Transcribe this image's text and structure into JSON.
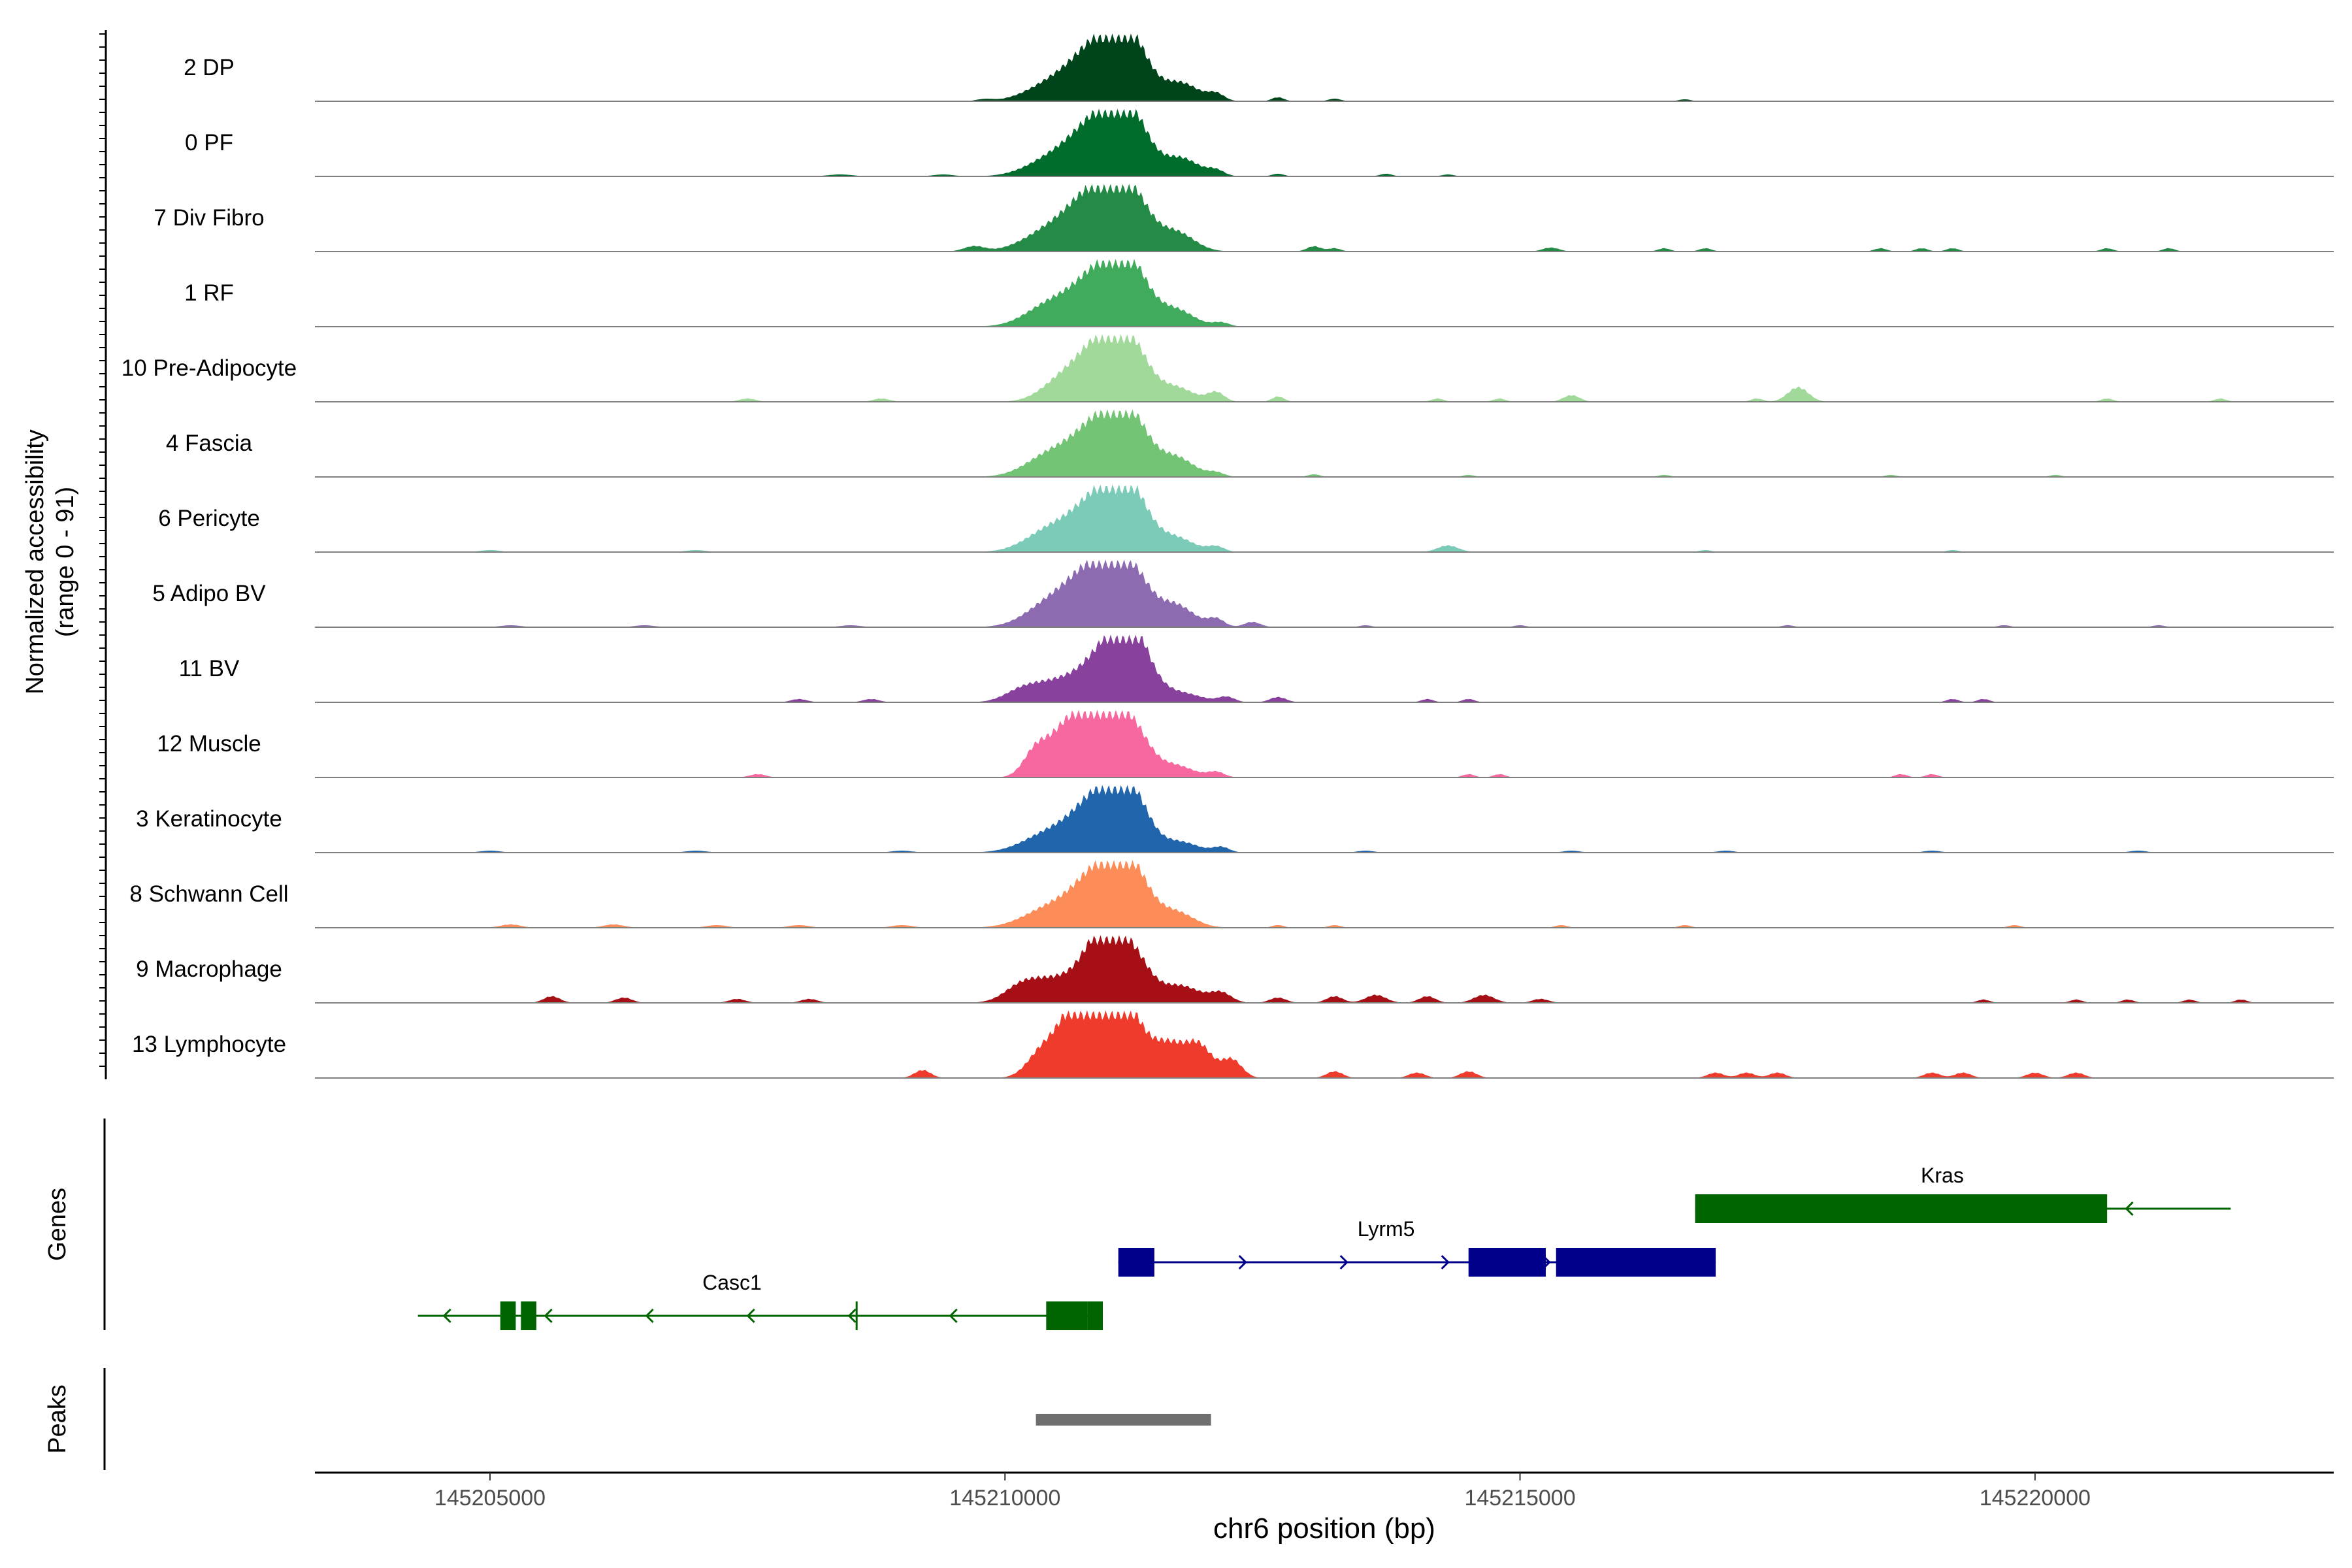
{
  "chart_data": {
    "type": "area",
    "title": "",
    "y_axis_label": "Normalized accessibility",
    "y_axis_sublabel": "(range 0 - 91)",
    "y_range": [
      0,
      91
    ],
    "x_label": "chr6 position (bp)",
    "x_range": [
      145203300,
      145222900
    ],
    "x_ticks": [
      145205000,
      145210000,
      145215000,
      145220000
    ],
    "tracks": [
      {
        "label": "2 DP",
        "color": "#00441b",
        "peaks": [
          [
            145210950,
            88,
            240
          ],
          [
            145211250,
            62,
            160
          ],
          [
            145210500,
            30,
            260
          ],
          [
            145211700,
            28,
            180
          ],
          [
            145212050,
            10,
            80
          ],
          [
            145212650,
            6,
            60
          ],
          [
            145213200,
            4,
            60
          ],
          [
            145209800,
            3,
            80
          ],
          [
            145216600,
            3,
            60
          ]
        ]
      },
      {
        "label": "0 PF",
        "color": "#006d2c",
        "peaks": [
          [
            145210950,
            88,
            240
          ],
          [
            145211250,
            62,
            160
          ],
          [
            145210500,
            30,
            260
          ],
          [
            145211700,
            28,
            180
          ],
          [
            145212050,
            8,
            80
          ],
          [
            145208400,
            3,
            120
          ],
          [
            145209400,
            3,
            100
          ],
          [
            145212650,
            4,
            60
          ],
          [
            145213700,
            4,
            60
          ],
          [
            145214300,
            3,
            60
          ]
        ]
      },
      {
        "label": "7 Div Fibro",
        "color": "#238b45",
        "peaks": [
          [
            145210900,
            90,
            240
          ],
          [
            145211250,
            66,
            160
          ],
          [
            145210450,
            32,
            260
          ],
          [
            145211650,
            30,
            180
          ],
          [
            145209700,
            8,
            100
          ],
          [
            145213000,
            8,
            70
          ],
          [
            145213200,
            5,
            60
          ],
          [
            145215300,
            6,
            80
          ],
          [
            145216400,
            5,
            60
          ],
          [
            145216800,
            5,
            60
          ],
          [
            145218500,
            5,
            60
          ],
          [
            145218900,
            5,
            60
          ],
          [
            145219200,
            5,
            60
          ],
          [
            145220700,
            5,
            60
          ],
          [
            145221300,
            5,
            60
          ]
        ]
      },
      {
        "label": "1 RF",
        "color": "#41ab5d",
        "peaks": [
          [
            145210950,
            88,
            240
          ],
          [
            145211250,
            60,
            160
          ],
          [
            145210450,
            34,
            240
          ],
          [
            145211650,
            26,
            180
          ],
          [
            145212100,
            6,
            80
          ]
        ]
      },
      {
        "label": "10 Pre-Adipocyte",
        "color": "#a1d99b",
        "peaks": [
          [
            145210950,
            92,
            220
          ],
          [
            145211250,
            60,
            160
          ],
          [
            145210550,
            30,
            200
          ],
          [
            145211650,
            22,
            180
          ],
          [
            145212050,
            14,
            80
          ],
          [
            145212650,
            8,
            60
          ],
          [
            145207500,
            5,
            80
          ],
          [
            145208800,
            5,
            80
          ],
          [
            145214200,
            5,
            60
          ],
          [
            145214800,
            5,
            60
          ],
          [
            145215500,
            10,
            80
          ],
          [
            145217300,
            5,
            60
          ],
          [
            145217700,
            22,
            100
          ],
          [
            145220700,
            5,
            60
          ],
          [
            145221800,
            5,
            60
          ]
        ]
      },
      {
        "label": "4 Fascia",
        "color": "#74c476",
        "peaks": [
          [
            145210950,
            88,
            240
          ],
          [
            145211250,
            58,
            160
          ],
          [
            145210450,
            34,
            240
          ],
          [
            145211650,
            30,
            180
          ],
          [
            145212050,
            6,
            80
          ],
          [
            145213000,
            4,
            60
          ],
          [
            145214500,
            3,
            60
          ],
          [
            145216400,
            3,
            60
          ],
          [
            145218600,
            3,
            60
          ],
          [
            145220200,
            3,
            60
          ]
        ]
      },
      {
        "label": "6 Pericyte",
        "color": "#7ccbb8",
        "peaks": [
          [
            145210950,
            90,
            240
          ],
          [
            145211250,
            60,
            160
          ],
          [
            145210450,
            34,
            240
          ],
          [
            145211650,
            22,
            180
          ],
          [
            145212050,
            8,
            80
          ],
          [
            145214300,
            10,
            100
          ],
          [
            145205000,
            3,
            100
          ],
          [
            145207000,
            3,
            100
          ],
          [
            145216800,
            3,
            60
          ],
          [
            145219200,
            3,
            60
          ]
        ]
      },
      {
        "label": "5 Adipo BV",
        "color": "#8c6bb1",
        "peaks": [
          [
            145210900,
            92,
            240
          ],
          [
            145211250,
            62,
            160
          ],
          [
            145210450,
            36,
            240
          ],
          [
            145211650,
            34,
            180
          ],
          [
            145212050,
            12,
            80
          ],
          [
            145212400,
            8,
            80
          ],
          [
            145205200,
            3,
            100
          ],
          [
            145206500,
            3,
            100
          ],
          [
            145208500,
            3,
            100
          ],
          [
            145213500,
            3,
            60
          ],
          [
            145215000,
            3,
            60
          ],
          [
            145217600,
            3,
            60
          ],
          [
            145219700,
            3,
            60
          ],
          [
            145221200,
            3,
            60
          ]
        ]
      },
      {
        "label": "11 BV",
        "color": "#88419d",
        "peaks": [
          [
            145211050,
            88,
            240
          ],
          [
            145211250,
            60,
            160
          ],
          [
            145210500,
            30,
            260
          ],
          [
            145210150,
            12,
            160
          ],
          [
            145211700,
            14,
            200
          ],
          [
            145212150,
            8,
            80
          ],
          [
            145212650,
            8,
            80
          ],
          [
            145208000,
            5,
            80
          ],
          [
            145208700,
            5,
            80
          ],
          [
            145214100,
            5,
            60
          ],
          [
            145214500,
            5,
            60
          ],
          [
            145219200,
            5,
            60
          ],
          [
            145219500,
            5,
            60
          ]
        ]
      },
      {
        "label": "12 Muscle",
        "color": "#f768a1",
        "peaks": [
          [
            145210600,
            70,
            160
          ],
          [
            145210950,
            88,
            200
          ],
          [
            145211250,
            60,
            160
          ],
          [
            145210300,
            40,
            120
          ],
          [
            145211650,
            18,
            180
          ],
          [
            145212050,
            8,
            80
          ],
          [
            145207600,
            5,
            80
          ],
          [
            145214500,
            5,
            60
          ],
          [
            145214800,
            5,
            60
          ],
          [
            145218700,
            5,
            60
          ],
          [
            145219000,
            5,
            60
          ]
        ]
      },
      {
        "label": "3 Keratinocyte",
        "color": "#2166ac",
        "peaks": [
          [
            145210950,
            90,
            240
          ],
          [
            145211250,
            60,
            160
          ],
          [
            145210450,
            30,
            260
          ],
          [
            145211700,
            16,
            180
          ],
          [
            145212100,
            8,
            80
          ],
          [
            145205000,
            3,
            100
          ],
          [
            145207000,
            3,
            100
          ],
          [
            145209000,
            3,
            100
          ],
          [
            145213500,
            3,
            80
          ],
          [
            145215500,
            3,
            80
          ],
          [
            145217000,
            3,
            80
          ],
          [
            145219000,
            3,
            80
          ],
          [
            145221000,
            3,
            80
          ]
        ]
      },
      {
        "label": "8 Schwann Cell",
        "color": "#fc8d59",
        "peaks": [
          [
            145210950,
            90,
            240
          ],
          [
            145211250,
            60,
            160
          ],
          [
            145210450,
            30,
            260
          ],
          [
            145211650,
            24,
            180
          ],
          [
            145205200,
            5,
            100
          ],
          [
            145206200,
            5,
            100
          ],
          [
            145207200,
            4,
            100
          ],
          [
            145208000,
            4,
            100
          ],
          [
            145209000,
            4,
            100
          ],
          [
            145212650,
            4,
            60
          ],
          [
            145213200,
            4,
            60
          ],
          [
            145215400,
            4,
            60
          ],
          [
            145216600,
            4,
            60
          ],
          [
            145219800,
            4,
            60
          ]
        ]
      },
      {
        "label": "9 Macrophage",
        "color": "#a50f15",
        "peaks": [
          [
            145210950,
            98,
            180
          ],
          [
            145211250,
            62,
            160
          ],
          [
            145210500,
            36,
            260
          ],
          [
            145210150,
            18,
            160
          ],
          [
            145211700,
            26,
            200
          ],
          [
            145212100,
            14,
            100
          ],
          [
            145205600,
            10,
            80
          ],
          [
            145206300,
            8,
            80
          ],
          [
            145207400,
            6,
            80
          ],
          [
            145208100,
            6,
            80
          ],
          [
            145212650,
            8,
            80
          ],
          [
            145213200,
            10,
            80
          ],
          [
            145213600,
            12,
            100
          ],
          [
            145214100,
            10,
            80
          ],
          [
            145214650,
            12,
            100
          ],
          [
            145215200,
            6,
            80
          ],
          [
            145219500,
            5,
            60
          ],
          [
            145220400,
            5,
            60
          ],
          [
            145220900,
            5,
            60
          ],
          [
            145221500,
            5,
            60
          ],
          [
            145222000,
            5,
            60
          ]
        ]
      },
      {
        "label": "13 Lymphocyte",
        "color": "#ef3b2c",
        "peaks": [
          [
            145210650,
            80,
            160
          ],
          [
            145210950,
            92,
            200
          ],
          [
            145211200,
            70,
            160
          ],
          [
            145210350,
            36,
            140
          ],
          [
            145211600,
            52,
            180
          ],
          [
            145211900,
            40,
            120
          ],
          [
            145212200,
            28,
            100
          ],
          [
            145209200,
            12,
            80
          ],
          [
            145213200,
            10,
            80
          ],
          [
            145214000,
            8,
            80
          ],
          [
            145214500,
            10,
            80
          ],
          [
            145216900,
            8,
            80
          ],
          [
            145217200,
            8,
            80
          ],
          [
            145217500,
            8,
            80
          ],
          [
            145219000,
            8,
            80
          ],
          [
            145219300,
            8,
            80
          ],
          [
            145220000,
            8,
            80
          ],
          [
            145220400,
            8,
            80
          ]
        ]
      }
    ],
    "genes_label": "Genes",
    "genes": [
      {
        "name": "Kras",
        "strand": "-",
        "color": "#006400",
        "start": 145216700,
        "end": 145221900,
        "exons": [
          [
            145216700,
            145220700
          ]
        ]
      },
      {
        "name": "Lyrm5",
        "strand": "+",
        "color": "#00008b",
        "start": 145211100,
        "end": 145216900,
        "exons": [
          [
            145211100,
            145211450
          ],
          [
            145214500,
            145215250
          ],
          [
            145215350,
            145216900
          ]
        ]
      },
      {
        "name": "Casc1",
        "strand": "-",
        "color": "#006400",
        "start": 145204300,
        "end": 145210950,
        "exons": [
          [
            145205100,
            145205250
          ],
          [
            145205300,
            145205450
          ],
          [
            145210400,
            145210800
          ],
          [
            145210800,
            145210950
          ],
          [
            145208550,
            145208560
          ]
        ]
      }
    ],
    "peaks_label": "Peaks",
    "peak_regions": [
      [
        145210300,
        145212000
      ]
    ]
  }
}
